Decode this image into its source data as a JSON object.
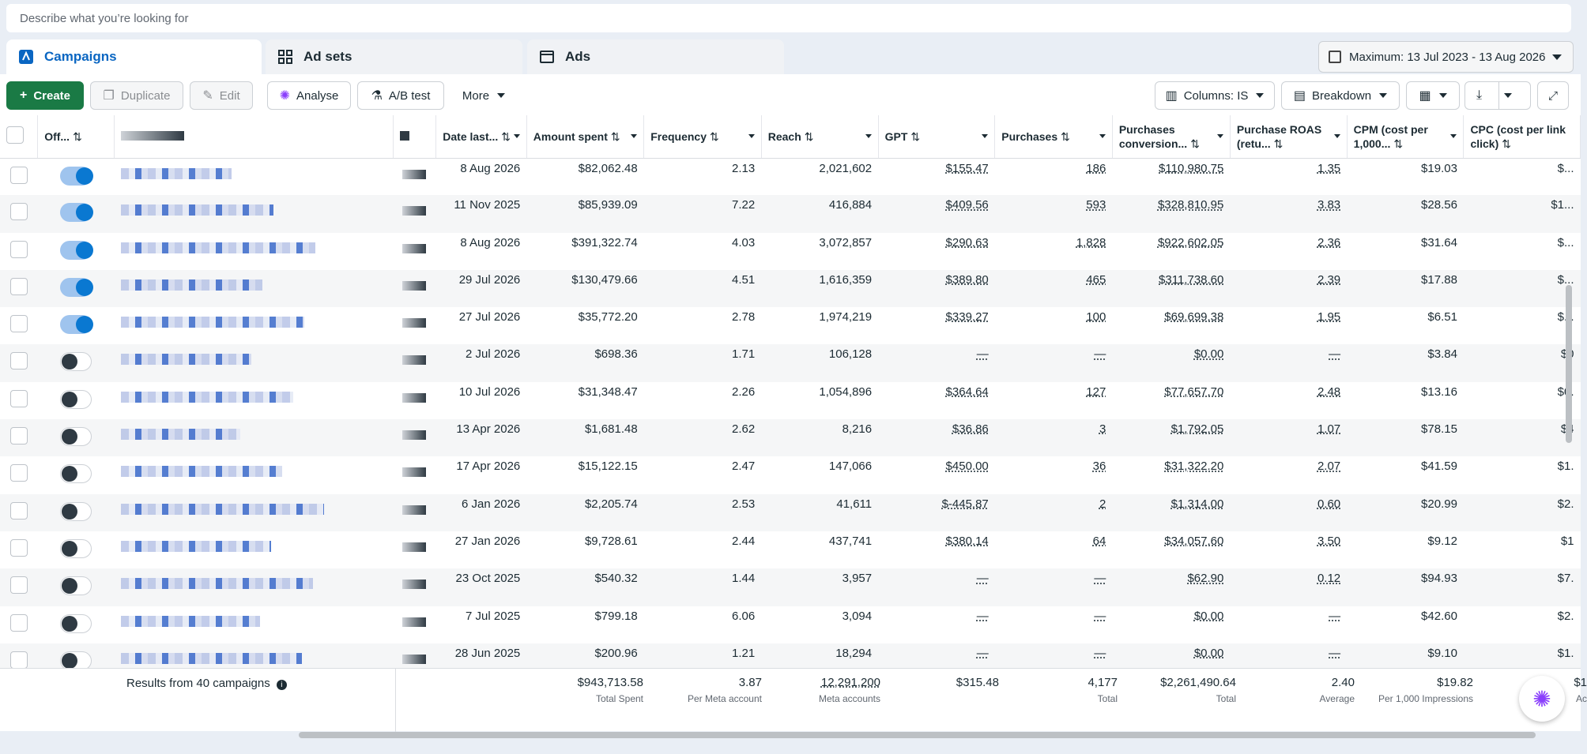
{
  "search": {
    "placeholder": "Describe what you’re looking for"
  },
  "tabs": [
    {
      "label": "Campaigns"
    },
    {
      "label": "Ad sets"
    },
    {
      "label": "Ads"
    }
  ],
  "date_range": "Maximum: 13 Jul 2023 - 13 Aug 2026",
  "toolbar": {
    "create": "Create",
    "duplicate": "Duplicate",
    "edit": "Edit",
    "analyse": "Analyse",
    "ab_test": "A/B test",
    "more": "More",
    "columns": "Columns: IS",
    "breakdown": "Breakdown"
  },
  "columns": {
    "toggle": "Off...",
    "date": "Date last...",
    "amount": "Amount spent",
    "frequency": "Frequency",
    "reach": "Reach",
    "gpt": "GPT",
    "purchases": "Purchases",
    "conv": "Purchases conversion...",
    "roas": "Purchase ROAS (retu...",
    "cpm": "CPM (cost per 1,000...",
    "cpc": "CPC (cost per link click)"
  },
  "rows": [
    {
      "on": true,
      "date": "8 Aug 2026",
      "amount": "$82,062.48",
      "frequency": "2.13",
      "reach": "2,021,602",
      "gpt": "$155.47",
      "purchases": "186",
      "conv": "$110,980.75",
      "roas": "1.35",
      "cpm": "$19.03",
      "cpc": "$..."
    },
    {
      "on": true,
      "date": "11 Nov 2025",
      "amount": "$85,939.09",
      "frequency": "7.22",
      "reach": "416,884",
      "gpt": "$409.56",
      "purchases": "593",
      "conv": "$328,810.95",
      "roas": "3.83",
      "cpm": "$28.56",
      "cpc": "$1..."
    },
    {
      "on": true,
      "date": "8 Aug 2026",
      "amount": "$391,322.74",
      "frequency": "4.03",
      "reach": "3,072,857",
      "gpt": "$290.63",
      "purchases": "1,828",
      "conv": "$922,602.05",
      "roas": "2.36",
      "cpm": "$31.64",
      "cpc": "$..."
    },
    {
      "on": true,
      "date": "29 Jul 2026",
      "amount": "$130,479.66",
      "frequency": "4.51",
      "reach": "1,616,359",
      "gpt": "$389.80",
      "purchases": "465",
      "conv": "$311,738.60",
      "roas": "2.39",
      "cpm": "$17.88",
      "cpc": "$..."
    },
    {
      "on": true,
      "date": "27 Jul 2026",
      "amount": "$35,772.20",
      "frequency": "2.78",
      "reach": "1,974,219",
      "gpt": "$339.27",
      "purchases": "100",
      "conv": "$69,699.38",
      "roas": "1.95",
      "cpm": "$6.51",
      "cpc": "$..."
    },
    {
      "on": false,
      "date": "2 Jul 2026",
      "amount": "$698.36",
      "frequency": "1.71",
      "reach": "106,128",
      "gpt": "—",
      "purchases": "—",
      "conv": "$0.00",
      "roas": "—",
      "cpm": "$3.84",
      "cpc": "$0"
    },
    {
      "on": false,
      "date": "10 Jul 2026",
      "amount": "$31,348.47",
      "frequency": "2.26",
      "reach": "1,054,896",
      "gpt": "$364.64",
      "purchases": "127",
      "conv": "$77,657.70",
      "roas": "2.48",
      "cpm": "$13.16",
      "cpc": "$0."
    },
    {
      "on": false,
      "date": "13 Apr 2026",
      "amount": "$1,681.48",
      "frequency": "2.62",
      "reach": "8,216",
      "gpt": "$36.86",
      "purchases": "3",
      "conv": "$1,792.05",
      "roas": "1.07",
      "cpm": "$78.15",
      "cpc": "$4"
    },
    {
      "on": false,
      "date": "17 Apr 2026",
      "amount": "$15,122.15",
      "frequency": "2.47",
      "reach": "147,066",
      "gpt": "$450.00",
      "purchases": "36",
      "conv": "$31,322.20",
      "roas": "2.07",
      "cpm": "$41.59",
      "cpc": "$1."
    },
    {
      "on": false,
      "date": "6 Jan 2026",
      "amount": "$2,205.74",
      "frequency": "2.53",
      "reach": "41,611",
      "gpt": "$-445.87",
      "purchases": "2",
      "conv": "$1,314.00",
      "roas": "0.60",
      "cpm": "$20.99",
      "cpc": "$2."
    },
    {
      "on": false,
      "date": "27 Jan 2026",
      "amount": "$9,728.61",
      "frequency": "2.44",
      "reach": "437,741",
      "gpt": "$380.14",
      "purchases": "64",
      "conv": "$34,057.60",
      "roas": "3.50",
      "cpm": "$9.12",
      "cpc": "$1"
    },
    {
      "on": false,
      "date": "23 Oct 2025",
      "amount": "$540.32",
      "frequency": "1.44",
      "reach": "3,957",
      "gpt": "—",
      "purchases": "—",
      "conv": "$62.90",
      "roas": "0.12",
      "cpm": "$94.93",
      "cpc": "$7."
    },
    {
      "on": false,
      "date": "7 Jul 2025",
      "amount": "$799.18",
      "frequency": "6.06",
      "reach": "3,094",
      "gpt": "—",
      "purchases": "—",
      "conv": "$0.00",
      "roas": "—",
      "cpm": "$42.60",
      "cpc": "$2."
    },
    {
      "on": false,
      "date": "28 Jun 2025",
      "amount": "$200.96",
      "frequency": "1.21",
      "reach": "18,294",
      "gpt": "—",
      "purchases": "—",
      "conv": "$0.00",
      "roas": "—",
      "cpm": "$9.10",
      "cpc": "$1."
    }
  ],
  "footer": {
    "label": "Results from 40 campaigns",
    "amount": {
      "value": "$943,713.58",
      "sub": "Total Spent"
    },
    "frequency": {
      "value": "3.87",
      "sub": "Per Meta account"
    },
    "reach": {
      "value": "12,291,200",
      "sub": "Meta accounts"
    },
    "gpt": {
      "value": "$315.48",
      "sub": ""
    },
    "purchases": {
      "value": "4,177",
      "sub": "Total"
    },
    "conv": {
      "value": "$2,261,490.64",
      "sub": "Total"
    },
    "roas": {
      "value": "2.40",
      "sub": "Average"
    },
    "cpm": {
      "value": "$19.82",
      "sub": "Per 1,000 Impressions"
    },
    "cpc": {
      "value": "$1",
      "sub": "Ac"
    }
  }
}
